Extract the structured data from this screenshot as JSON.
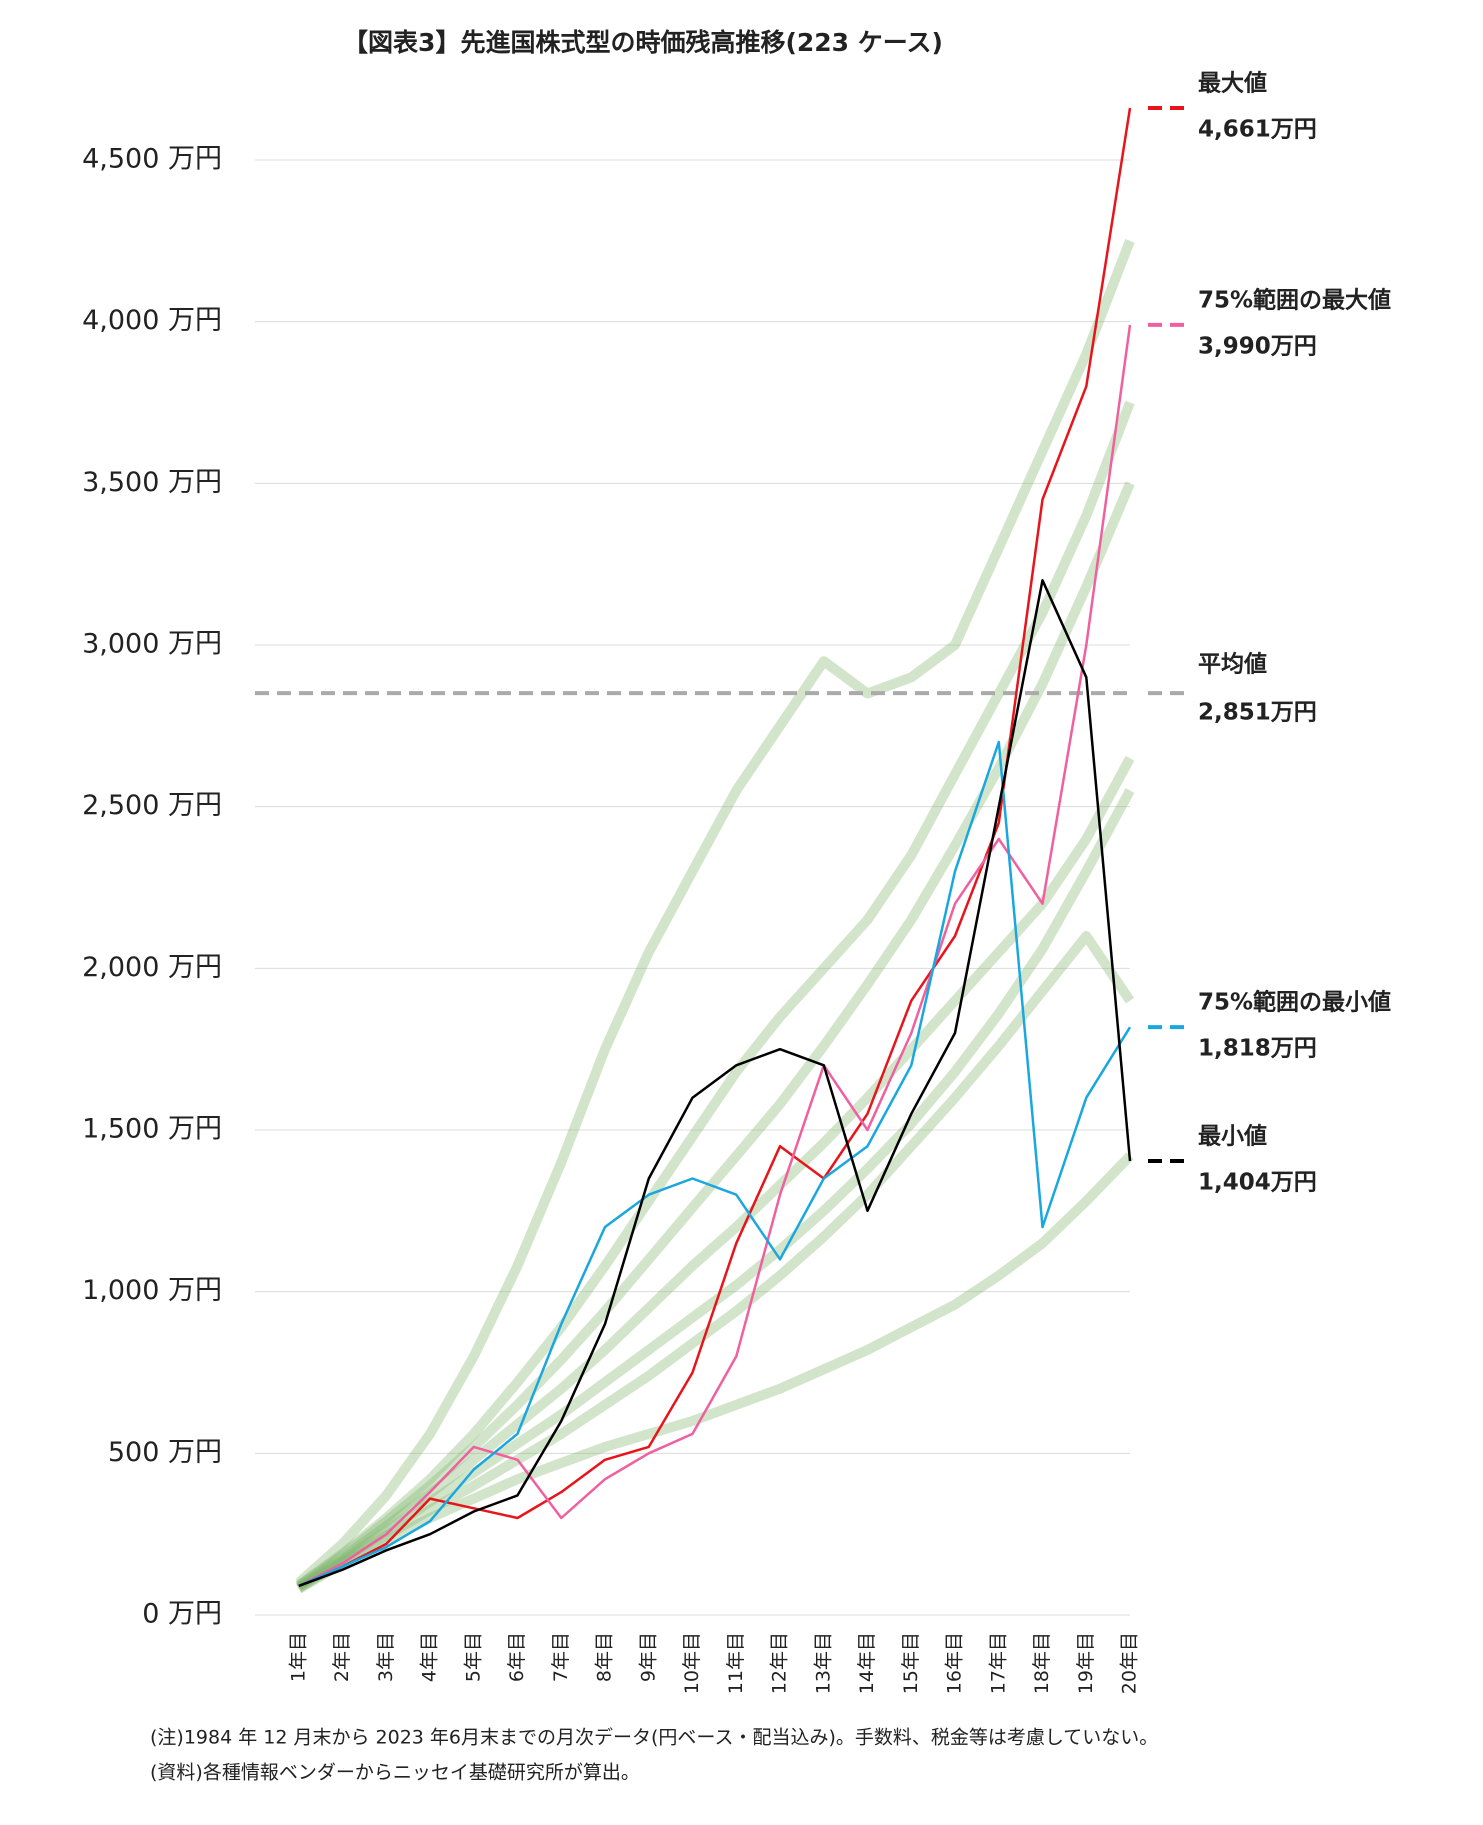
{
  "chart_data": {
    "type": "line",
    "title": "【図表3】先進国株式型の時価残高推移(223 ケース)",
    "categories": [
      "1年目",
      "2年目",
      "3年目",
      "4年目",
      "5年目",
      "6年目",
      "7年目",
      "8年目",
      "9年目",
      "10年目",
      "11年目",
      "12年目",
      "13年目",
      "14年目",
      "15年目",
      "16年目",
      "17年目",
      "18年目",
      "19年目",
      "20年目"
    ],
    "ylim": [
      0,
      4700
    ],
    "yticks": [
      {
        "value": 0,
        "label": "0 万円"
      },
      {
        "value": 500,
        "label": "500 万円"
      },
      {
        "value": 1000,
        "label": "1,000 万円"
      },
      {
        "value": 1500,
        "label": "1,500 万円"
      },
      {
        "value": 2000,
        "label": "2,000 万円"
      },
      {
        "value": 2500,
        "label": "2,500 万円"
      },
      {
        "value": 3000,
        "label": "3,000 万円"
      },
      {
        "value": 3500,
        "label": "3,500 万円"
      },
      {
        "value": 4000,
        "label": "4,000 万円"
      },
      {
        "value": 4500,
        "label": "4,500 万円"
      }
    ],
    "grid": true,
    "background_color": "#7fb46a",
    "background_series": [
      [
        80,
        160,
        230,
        300,
        360,
        420,
        470,
        520,
        560,
        600,
        650,
        700,
        760,
        820,
        890,
        960,
        1050,
        1150,
        1280,
        1420
      ],
      [
        83,
        165,
        245,
        325,
        400,
        480,
        560,
        650,
        740,
        840,
        940,
        1050,
        1170,
        1300,
        1450,
        1600,
        1760,
        1930,
        2100,
        1900
      ],
      [
        85,
        170,
        260,
        350,
        440,
        530,
        620,
        720,
        820,
        920,
        1020,
        1130,
        1250,
        1380,
        1520,
        1680,
        1860,
        2060,
        2300,
        2550
      ],
      [
        88,
        178,
        275,
        375,
        480,
        590,
        700,
        820,
        950,
        1080,
        1200,
        1330,
        1460,
        1600,
        1750,
        1900,
        2050,
        2200,
        2400,
        2650
      ],
      [
        90,
        185,
        290,
        400,
        520,
        650,
        790,
        940,
        1100,
        1260,
        1420,
        1580,
        1760,
        1950,
        2150,
        2380,
        2620,
        2880,
        3180,
        3500
      ],
      [
        92,
        190,
        300,
        420,
        560,
        720,
        890,
        1080,
        1280,
        1480,
        1680,
        1850,
        2000,
        2150,
        2350,
        2600,
        2850,
        3100,
        3400,
        3750
      ],
      [
        100,
        220,
        370,
        560,
        800,
        1080,
        1400,
        1750,
        2050,
        2300,
        2550,
        2750,
        2950,
        2850,
        2900,
        3000,
        3300,
        3600,
        3900,
        4250
      ]
    ],
    "series": [
      {
        "name": "最大値",
        "color": "#e8141b",
        "values": [
          90,
          150,
          220,
          360,
          330,
          300,
          380,
          480,
          520,
          750,
          1150,
          1450,
          1350,
          1550,
          1900,
          2100,
          2450,
          3450,
          3800,
          4661
        ],
        "value_labels": [
          null,
          null,
          null,
          null,
          null,
          null,
          null,
          null,
          null,
          null,
          null,
          null,
          null,
          null,
          null,
          null,
          null,
          null,
          null,
          "4,661万円"
        ]
      },
      {
        "name": "75%範囲の最大値",
        "color": "#f0609e",
        "values": [
          90,
          160,
          250,
          380,
          520,
          480,
          300,
          420,
          500,
          560,
          800,
          1300,
          1700,
          1500,
          1800,
          2200,
          2400,
          2200,
          3000,
          3990
        ],
        "value_labels": [
          null,
          null,
          null,
          null,
          null,
          null,
          null,
          null,
          null,
          null,
          null,
          null,
          null,
          null,
          null,
          null,
          null,
          null,
          null,
          "3,990万円"
        ]
      },
      {
        "name": "75%範囲の最小値",
        "color": "#1aa7e0",
        "values": [
          90,
          150,
          210,
          290,
          450,
          560,
          900,
          1200,
          1300,
          1350,
          1300,
          1100,
          1350,
          1450,
          1700,
          2300,
          2700,
          1200,
          1600,
          1818
        ],
        "value_labels": [
          null,
          null,
          null,
          null,
          null,
          null,
          null,
          null,
          null,
          null,
          null,
          null,
          null,
          null,
          null,
          null,
          null,
          null,
          null,
          "1,818万円"
        ]
      },
      {
        "name": "最小値",
        "color": "#000000",
        "values": [
          90,
          140,
          200,
          250,
          320,
          370,
          600,
          900,
          1350,
          1600,
          1700,
          1750,
          1700,
          1250,
          1550,
          1800,
          2500,
          3200,
          2900,
          1404
        ],
        "value_labels": [
          null,
          null,
          null,
          null,
          null,
          null,
          null,
          null,
          null,
          null,
          null,
          null,
          null,
          null,
          null,
          null,
          null,
          null,
          null,
          "1,404万円"
        ]
      }
    ],
    "reference_lines": [
      {
        "name": "平均値",
        "color": "#aaaaaa",
        "value": 2851,
        "value_label": "2,851万円"
      }
    ],
    "notes": [
      "(注)1984 年 12 月末から 2023 年6月末までの月次データ(円ベース・配当込み)。手数料、税金等は考慮していない。",
      "(資料)各種情報ベンダーからニッセイ基礎研究所が算出。"
    ]
  }
}
